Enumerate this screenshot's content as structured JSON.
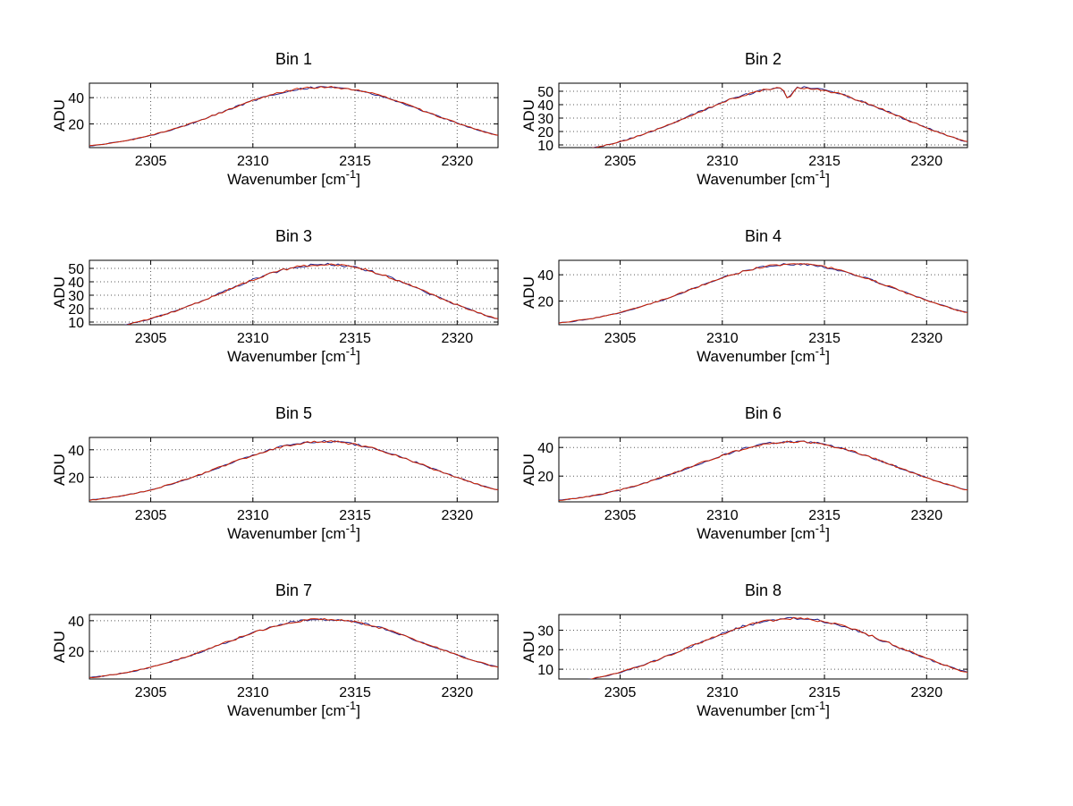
{
  "figure": {
    "background": "#ffffff"
  },
  "labels": {
    "ylabel": "ADU",
    "xlabel_prefix": "Wavenumber [cm",
    "xlabel_sup": "-1",
    "xlabel_suffix": "]"
  },
  "chart_data": {
    "type": "line",
    "layout": "4x2-grid",
    "title": "",
    "xlabel": "Wavenumber [cm^-1]",
    "ylabel": "ADU",
    "grid": true,
    "line_color": "#cc2200",
    "underlay_line_color": "#22228c",
    "xlim": [
      2302,
      2322
    ],
    "xticks": [
      2305,
      2310,
      2315,
      2320
    ],
    "x": [
      2302,
      2303,
      2304,
      2305,
      2306,
      2307,
      2308,
      2309,
      2310,
      2311,
      2312,
      2313,
      2314,
      2315,
      2316,
      2317,
      2318,
      2319,
      2320,
      2321,
      2322
    ],
    "subplots": [
      {
        "title": "Bin 1",
        "yticks": [
          20,
          40
        ],
        "ylim": [
          2,
          51
        ],
        "values": [
          3.4,
          5.3,
          7.9,
          11.3,
          15.6,
          20.6,
          26.2,
          32.0,
          37.6,
          42.4,
          45.9,
          47.8,
          47.8,
          45.9,
          42.4,
          37.6,
          32.0,
          26.2,
          20.6,
          15.6,
          11.3
        ]
      },
      {
        "title": "Bin 2",
        "yticks": [
          10,
          20,
          30,
          40,
          50
        ],
        "ylim": [
          8,
          56
        ],
        "values": [
          3.8,
          5.8,
          8.7,
          12.5,
          17.2,
          22.8,
          28.9,
          35.4,
          41.5,
          46.8,
          50.7,
          52.7,
          52.7,
          50.7,
          46.8,
          41.5,
          35.4,
          28.9,
          22.8,
          17.2,
          12.5
        ],
        "spikes": [
          {
            "x": 2313.3,
            "depth": 7
          }
        ]
      },
      {
        "title": "Bin 3",
        "yticks": [
          10,
          20,
          30,
          40,
          50
        ],
        "ylim": [
          8,
          56
        ],
        "values": [
          3.8,
          5.8,
          8.7,
          12.5,
          17.2,
          22.8,
          28.9,
          35.4,
          41.5,
          46.8,
          50.7,
          52.7,
          52.7,
          50.7,
          46.8,
          41.5,
          35.4,
          28.9,
          22.8,
          17.2,
          12.5
        ]
      },
      {
        "title": "Bin 4",
        "yticks": [
          20,
          40
        ],
        "ylim": [
          2,
          51
        ],
        "values": [
          3.4,
          5.3,
          7.9,
          11.3,
          15.6,
          20.6,
          26.2,
          32.0,
          37.6,
          42.4,
          45.9,
          47.8,
          47.8,
          45.9,
          42.4,
          37.6,
          32.0,
          26.2,
          20.6,
          15.6,
          11.3
        ]
      },
      {
        "title": "Bin 5",
        "yticks": [
          20,
          40
        ],
        "ylim": [
          2,
          49
        ],
        "values": [
          3.3,
          5.1,
          7.6,
          10.8,
          14.9,
          19.8,
          25.1,
          30.7,
          36.0,
          40.6,
          44.0,
          45.8,
          45.8,
          44.0,
          40.6,
          36.0,
          30.7,
          25.1,
          19.8,
          14.9,
          10.8
        ]
      },
      {
        "title": "Bin 6",
        "yticks": [
          20,
          40
        ],
        "ylim": [
          2,
          47
        ],
        "values": [
          3.1,
          4.8,
          7.2,
          10.4,
          14.3,
          18.9,
          24.0,
          29.3,
          34.4,
          38.8,
          42.1,
          43.8,
          43.8,
          42.1,
          38.8,
          34.4,
          29.3,
          24.0,
          18.9,
          14.3,
          10.4
        ]
      },
      {
        "title": "Bin 7",
        "yticks": [
          20,
          40
        ],
        "ylim": [
          2,
          44
        ],
        "values": [
          2.9,
          4.5,
          6.7,
          9.7,
          13.3,
          17.6,
          22.4,
          27.3,
          32.1,
          36.2,
          39.2,
          40.8,
          40.8,
          39.2,
          36.2,
          32.1,
          27.3,
          22.4,
          17.6,
          13.3,
          9.7
        ]
      },
      {
        "title": "Bin 8",
        "yticks": [
          10,
          20,
          30
        ],
        "ylim": [
          5,
          38
        ],
        "values": [
          2.6,
          4.0,
          5.9,
          8.5,
          11.7,
          15.5,
          19.7,
          24.0,
          28.2,
          31.8,
          34.4,
          35.8,
          35.8,
          34.4,
          31.8,
          28.2,
          24.0,
          19.7,
          15.5,
          11.7,
          8.5
        ]
      }
    ]
  }
}
